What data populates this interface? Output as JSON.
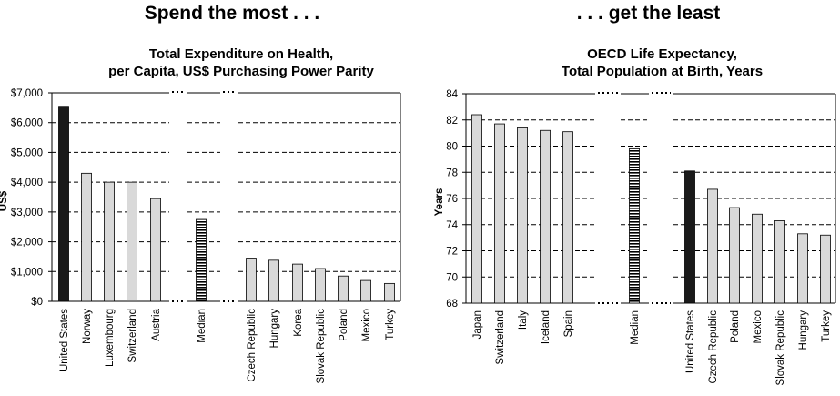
{
  "headlines": {
    "left": "Spend the most . . .",
    "right": ". . . get the least"
  },
  "colors": {
    "emphasis_bar": "#1a1a1a",
    "normal_bar": "#d9d9d9",
    "bar_stroke": "#000000"
  },
  "chart_data": [
    {
      "type": "bar",
      "title": "Total Expenditure on Health, per Capita, US$ Purchasing Power Parity",
      "title_lines": [
        "Total Expenditure on Health,",
        "per Capita, US$ Purchasing Power Parity"
      ],
      "xlabel": "",
      "ylabel": "US$",
      "ylim": [
        0,
        7000
      ],
      "yticks": [
        0,
        1000,
        2000,
        3000,
        4000,
        5000,
        6000,
        7000
      ],
      "ytick_labels": [
        "$0",
        "$1,000",
        "$2,000",
        "$3,000",
        "$4,000",
        "$5,000",
        "$6,000",
        "$7,000"
      ],
      "grid": "dashed horizontal",
      "categories": [
        "United States",
        "Norway",
        "Luxembourg",
        "Switzerland",
        "Austria",
        "Median",
        "Czech Republic",
        "Hungary",
        "Korea",
        "Slovak Republic",
        "Poland",
        "Mexico",
        "Turkey"
      ],
      "values": [
        6550,
        4300,
        4000,
        4000,
        3450,
        2750,
        1450,
        1380,
        1250,
        1100,
        850,
        700,
        600
      ],
      "styles": [
        "dark",
        "light",
        "light",
        "light",
        "light",
        "striped",
        "light",
        "light",
        "light",
        "light",
        "light",
        "light",
        "light"
      ],
      "groups": [
        [
          0,
          1,
          2,
          3,
          4
        ],
        [
          5
        ],
        [
          6,
          7,
          8,
          9,
          10,
          11,
          12
        ]
      ]
    },
    {
      "type": "bar",
      "title": "OECD Life Expectancy, Total Population at Birth, Years",
      "title_lines": [
        "OECD Life Expectancy,",
        "Total Population at Birth, Years"
      ],
      "xlabel": "",
      "ylabel": "Years",
      "ylim": [
        68,
        84
      ],
      "yticks": [
        68,
        70,
        72,
        74,
        76,
        78,
        80,
        82,
        84
      ],
      "ytick_labels": [
        "68",
        "70",
        "72",
        "74",
        "76",
        "78",
        "80",
        "82",
        "84"
      ],
      "grid": "dashed horizontal",
      "categories": [
        "Japan",
        "Switzerland",
        "Italy",
        "Iceland",
        "Spain",
        "Median",
        "United States",
        "Czech Republic",
        "Poland",
        "Mexico",
        "Slovak Republic",
        "Hungary",
        "Turkey"
      ],
      "values": [
        82.4,
        81.7,
        81.4,
        81.2,
        81.1,
        79.8,
        78.1,
        76.7,
        75.3,
        74.8,
        74.3,
        73.3,
        73.2
      ],
      "styles": [
        "light",
        "light",
        "light",
        "light",
        "light",
        "striped",
        "dark",
        "light",
        "light",
        "light",
        "light",
        "light",
        "light"
      ],
      "groups": [
        [
          0,
          1,
          2,
          3,
          4
        ],
        [
          5
        ],
        [
          6,
          7,
          8,
          9,
          10,
          11,
          12
        ]
      ]
    }
  ]
}
